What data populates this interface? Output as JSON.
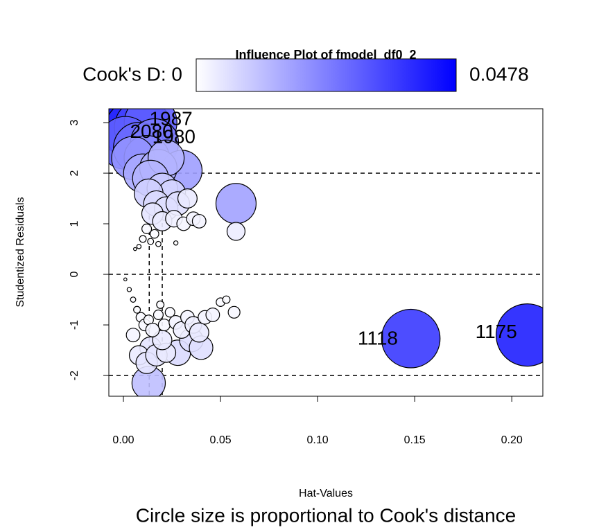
{
  "chart_data": {
    "type": "bubble",
    "title": "Influence Plot of fmodel_df0_2",
    "subtitle": "Circle size is proportional to Cook's distance",
    "x_label": "Hat-Values",
    "y_label": "Studentized Residuals",
    "colorbar_label": "Cook's D: 0",
    "size_max": 0.0478,
    "colors": [
      "#ffffff",
      "#0000ff"
    ],
    "xlim": [
      -0.0075,
      0.216
    ],
    "ylim": [
      -2.41,
      3.274
    ],
    "xticks": [
      {
        "value": 0,
        "label": "0.00"
      },
      0.05,
      {
        "value": 0.1,
        "label": "0.10"
      },
      0.15,
      {
        "value": 0.2,
        "label": "0.20"
      }
    ],
    "yticks": [
      -2,
      -1,
      0,
      1,
      2,
      3
    ],
    "hlines": [
      -2,
      0,
      2
    ],
    "vlines": [
      0.0133,
      0.02
    ],
    "series": [
      {
        "x": [
          0.003,
          0.006,
          0.01,
          0.014,
          0.001,
          0.008,
          0.016,
          0.012,
          0.005,
          0.03,
          0.01,
          0.018,
          0.022,
          0.014,
          0.02,
          0.025,
          0.013,
          0.017,
          0.022,
          0.028,
          0.033,
          0.058,
          0.015,
          0.02,
          0.026,
          0.031,
          0.036,
          0.039,
          0.058,
          0.012,
          0.016,
          0.01,
          0.014,
          0.008,
          0.018,
          0.027,
          0.006,
          0.208,
          0.148,
          0.013,
          0.028,
          0.035,
          0.04,
          0.014,
          0.008,
          0.012,
          0.017,
          0.022,
          0.02,
          0.001,
          0.003,
          0.005,
          0.007,
          0.009,
          0.011,
          0.013,
          0.015,
          0.018,
          0.021,
          0.024,
          0.027,
          0.03,
          0.033,
          0.036,
          0.039,
          0.042,
          0.046,
          0.05,
          0.053,
          0.057,
          0.005,
          0.019
        ],
        "values": [
          3.0,
          2.85,
          2.9,
          3.0,
          2.6,
          2.5,
          2.6,
          2.3,
          2.3,
          2.05,
          2.0,
          2.1,
          2.3,
          1.9,
          1.7,
          1.6,
          1.6,
          1.4,
          1.3,
          1.4,
          1.5,
          1.4,
          1.2,
          1.05,
          1.1,
          1.0,
          1.1,
          1.05,
          0.85,
          0.9,
          0.8,
          0.7,
          0.65,
          0.55,
          0.6,
          0.62,
          0.5,
          -1.2,
          -1.27,
          -2.15,
          -1.55,
          -1.3,
          -1.45,
          -1.45,
          -1.6,
          -1.75,
          -1.6,
          -1.55,
          -1.3,
          -0.1,
          -0.3,
          -0.5,
          -0.7,
          -0.85,
          -1.0,
          -0.9,
          -1.1,
          -0.8,
          -1.0,
          -0.75,
          -0.95,
          -1.1,
          -0.85,
          -1.0,
          -1.15,
          -0.85,
          -0.8,
          -0.55,
          -0.5,
          -0.75,
          -1.2,
          -0.6
        ],
        "sizes": [
          0.0478,
          0.04,
          0.035,
          0.03,
          0.03,
          0.028,
          0.025,
          0.022,
          0.02,
          0.018,
          0.016,
          0.015,
          0.014,
          0.014,
          0.01,
          0.008,
          0.009,
          0.007,
          0.006,
          0.006,
          0.004,
          0.0174,
          0.005,
          0.004,
          0.003,
          0.002,
          0.002,
          0.002,
          0.0035,
          0.001,
          0.0008,
          0.0005,
          0.0004,
          0.0002,
          0.0003,
          0.0002,
          0.0001,
          0.042,
          0.037,
          0.012,
          0.007,
          0.006,
          0.006,
          0.005,
          0.004,
          0.005,
          0.005,
          0.004,
          0.004,
          0.0001,
          0.0002,
          0.0003,
          0.0005,
          0.001,
          0.0015,
          0.001,
          0.002,
          0.001,
          0.0015,
          0.001,
          0.002,
          0.003,
          0.002,
          0.003,
          0.004,
          0.002,
          0.002,
          0.0008,
          0.0006,
          0.0015,
          0.002,
          0.0006
        ]
      }
    ],
    "annotations": [
      {
        "text": "1987",
        "x": 0.0245,
        "y": 3.05
      },
      {
        "text": "2080",
        "x": 0.0145,
        "y": 2.8
      },
      {
        "text": "1980",
        "x": 0.026,
        "y": 2.7
      },
      {
        "text": "1118",
        "x": 0.131,
        "y": -1.29
      },
      {
        "text": "1175",
        "x": 0.192,
        "y": -1.16
      }
    ]
  }
}
